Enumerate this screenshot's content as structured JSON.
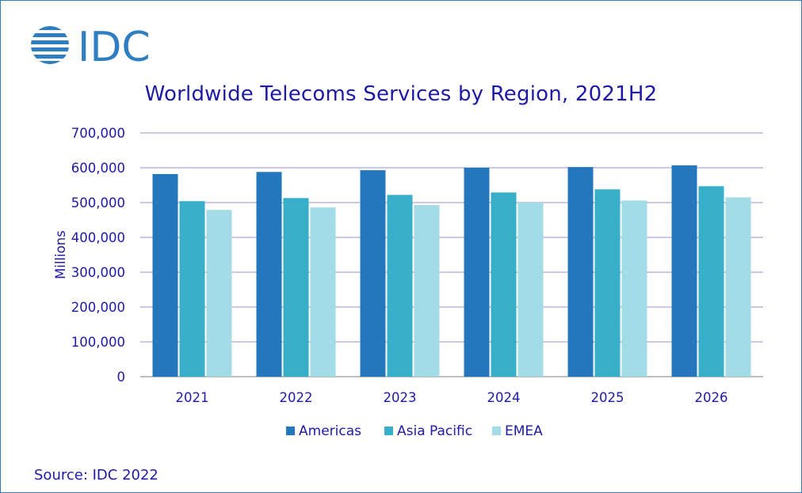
{
  "logo_text": "IDC",
  "colors": {
    "brand": "#2f7ec1",
    "text": "#1f1aa6",
    "gridline": "#b9b5e0",
    "americas": "#2577bd",
    "asia_pacific": "#38afc9",
    "emea": "#a3dbe6"
  },
  "chart_data": {
    "type": "bar",
    "title": "Worldwide Telecoms Services by Region, 2021H2",
    "xlabel": "",
    "ylabel": "Millions",
    "ylim": [
      0,
      700000
    ],
    "yticks": [
      0,
      100000,
      200000,
      300000,
      400000,
      500000,
      600000,
      700000
    ],
    "ytick_labels": [
      "0",
      "100,000",
      "200,000",
      "300,000",
      "400,000",
      "500,000",
      "600,000",
      "700,000"
    ],
    "categories": [
      "2021",
      "2022",
      "2023",
      "2024",
      "2025",
      "2026"
    ],
    "series": [
      {
        "name": "Americas",
        "values": [
          582000,
          588000,
          593000,
          600000,
          602000,
          607000
        ]
      },
      {
        "name": "Asia Pacific",
        "values": [
          504000,
          513000,
          522000,
          529000,
          538000,
          547000
        ]
      },
      {
        "name": "EMEA",
        "values": [
          479000,
          486000,
          493000,
          500000,
          506000,
          515000
        ]
      }
    ],
    "grid": true,
    "legend": "bottom-center"
  },
  "source": "Source: IDC 2022"
}
